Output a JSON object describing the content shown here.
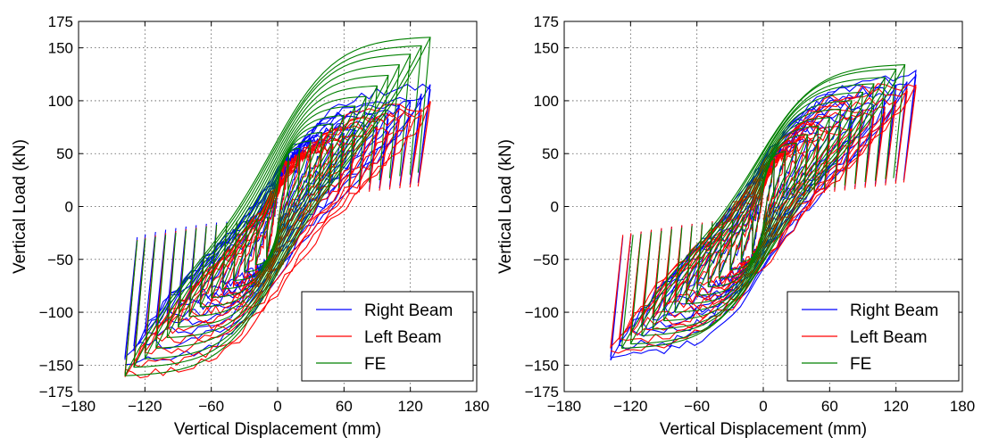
{
  "series_colors": {
    "Right Beam": "#0000ff",
    "Left Beam": "#ff0000",
    "FE": "#008000"
  },
  "chart_data": [
    {
      "type": "line",
      "title": "",
      "xlabel": "Vertical Displacement (mm)",
      "ylabel": "Vertical Load (kN)",
      "xlim": [
        -180,
        180
      ],
      "ylim": [
        -175,
        175
      ],
      "xticks": [
        -180,
        -120,
        -60,
        0,
        60,
        120,
        180
      ],
      "yticks": [
        -175,
        -150,
        -100,
        -50,
        0,
        50,
        100,
        150,
        175
      ],
      "grid": true,
      "legend_position": "lower-right",
      "x_tick_labels": [
        "−180",
        "−120",
        "−60",
        "0",
        "60",
        "120",
        "180"
      ],
      "y_tick_labels": [
        "−175",
        "−150",
        "−100",
        "−50",
        "0",
        "50",
        "100",
        "150",
        "175"
      ],
      "series": [
        {
          "name": "Right Beam",
          "peak_x": [
            10,
            20,
            30,
            40,
            50,
            60,
            70,
            80,
            90,
            100,
            110,
            120,
            130,
            138
          ],
          "peak_pos_y": [
            45,
            48,
            52,
            56,
            60,
            65,
            70,
            75,
            80,
            86,
            92,
            98,
            104,
            112
          ],
          "peak_neg_y": [
            -55,
            -60,
            -64,
            -68,
            -72,
            -76,
            -82,
            -88,
            -95,
            -102,
            -110,
            -120,
            -132,
            -145
          ]
        },
        {
          "name": "Left Beam",
          "peak_x": [
            10,
            20,
            30,
            40,
            50,
            60,
            70,
            80,
            90,
            100,
            110,
            120,
            130,
            138
          ],
          "peak_pos_y": [
            42,
            45,
            48,
            52,
            55,
            58,
            62,
            66,
            70,
            75,
            80,
            86,
            90,
            95
          ],
          "peak_neg_y": [
            -55,
            -62,
            -68,
            -74,
            -80,
            -86,
            -92,
            -100,
            -108,
            -116,
            -126,
            -136,
            -148,
            -158
          ]
        },
        {
          "name": "FE",
          "peak_x": [
            10,
            20,
            30,
            40,
            50,
            60,
            70,
            80,
            90,
            100,
            110,
            120,
            130,
            138
          ],
          "peak_pos_y": [
            48,
            55,
            62,
            70,
            78,
            86,
            95,
            104,
            114,
            124,
            134,
            144,
            152,
            160
          ],
          "peak_neg_y": [
            -48,
            -55,
            -62,
            -70,
            -78,
            -86,
            -95,
            -104,
            -114,
            -124,
            -134,
            -144,
            -152,
            -160
          ]
        }
      ]
    },
    {
      "type": "line",
      "title": "",
      "xlabel": "Vertical Displacement (mm)",
      "ylabel": "Vertical Load (kN)",
      "xlim": [
        -180,
        180
      ],
      "ylim": [
        -175,
        175
      ],
      "xticks": [
        -180,
        -120,
        -60,
        0,
        60,
        120,
        180
      ],
      "yticks": [
        -175,
        -150,
        -100,
        -50,
        0,
        50,
        100,
        150,
        175
      ],
      "grid": true,
      "legend_position": "lower-right",
      "x_tick_labels": [
        "−180",
        "−120",
        "−60",
        "0",
        "60",
        "120",
        "180"
      ],
      "y_tick_labels": [
        "−175",
        "−150",
        "−100",
        "−50",
        "0",
        "50",
        "100",
        "150",
        "175"
      ],
      "series": [
        {
          "name": "Right Beam",
          "peak_x": [
            10,
            20,
            30,
            40,
            50,
            60,
            70,
            80,
            90,
            100,
            110,
            120,
            130,
            138
          ],
          "peak_pos_y": [
            45,
            50,
            55,
            60,
            66,
            72,
            78,
            84,
            90,
            97,
            104,
            110,
            118,
            124
          ],
          "peak_neg_y": [
            -48,
            -54,
            -60,
            -66,
            -72,
            -78,
            -84,
            -90,
            -97,
            -104,
            -112,
            -120,
            -132,
            -142
          ]
        },
        {
          "name": "Left Beam",
          "peak_x": [
            10,
            20,
            30,
            40,
            50,
            60,
            70,
            80,
            90,
            100,
            110,
            120,
            130,
            138
          ],
          "peak_pos_y": [
            42,
            46,
            50,
            55,
            60,
            65,
            70,
            76,
            82,
            88,
            94,
            100,
            108,
            114
          ],
          "peak_neg_y": [
            -46,
            -52,
            -58,
            -64,
            -70,
            -76,
            -82,
            -88,
            -95,
            -102,
            -110,
            -118,
            -126,
            -134
          ]
        },
        {
          "name": "FE",
          "peak_x": [
            10,
            20,
            30,
            40,
            50,
            60,
            70,
            80,
            90,
            100,
            110,
            120,
            128
          ],
          "peak_pos_y": [
            45,
            52,
            60,
            68,
            76,
            84,
            92,
            100,
            108,
            116,
            122,
            130,
            134
          ],
          "peak_neg_y": [
            -45,
            -52,
            -60,
            -68,
            -76,
            -84,
            -92,
            -100,
            -108,
            -116,
            -122,
            -130,
            -134
          ]
        }
      ]
    }
  ]
}
